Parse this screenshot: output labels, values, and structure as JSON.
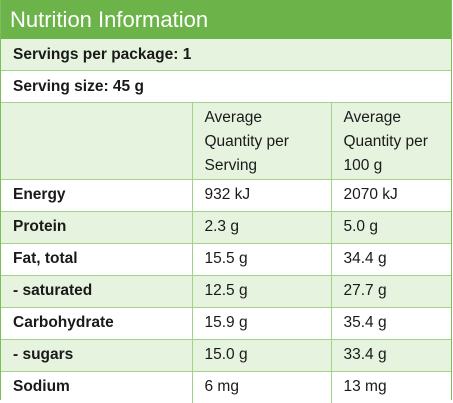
{
  "title": "Nutrition Information",
  "servings_per_package": "Servings per package: 1",
  "serving_size": "Serving size: 45 g",
  "columns": {
    "name": "",
    "per_serving": [
      "Average",
      "Quantity per",
      "Serving"
    ],
    "per_100g": [
      "Average",
      "Quantity per",
      "100 g"
    ]
  },
  "rows": [
    {
      "nutrient": "Energy",
      "per_serving": "932 kJ",
      "per_100g": "2070 kJ"
    },
    {
      "nutrient": "Protein",
      "per_serving": "2.3 g",
      "per_100g": "5.0 g"
    },
    {
      "nutrient": "Fat, total",
      "per_serving": "15.5 g",
      "per_100g": "34.4 g"
    },
    {
      "nutrient": "- saturated",
      "per_serving": "12.5 g",
      "per_100g": "27.7 g"
    },
    {
      "nutrient": "Carbohydrate",
      "per_serving": "15.9 g",
      "per_100g": "35.4 g"
    },
    {
      "nutrient": "- sugars",
      "per_serving": "15.0 g",
      "per_100g": "33.4 g"
    },
    {
      "nutrient": "Sodium",
      "per_serving": "6 mg",
      "per_100g": "13 mg"
    }
  ],
  "colors": {
    "header_green": "#6cb44a",
    "shade_green": "#e6f3de",
    "border_green": "#9fd48a"
  }
}
